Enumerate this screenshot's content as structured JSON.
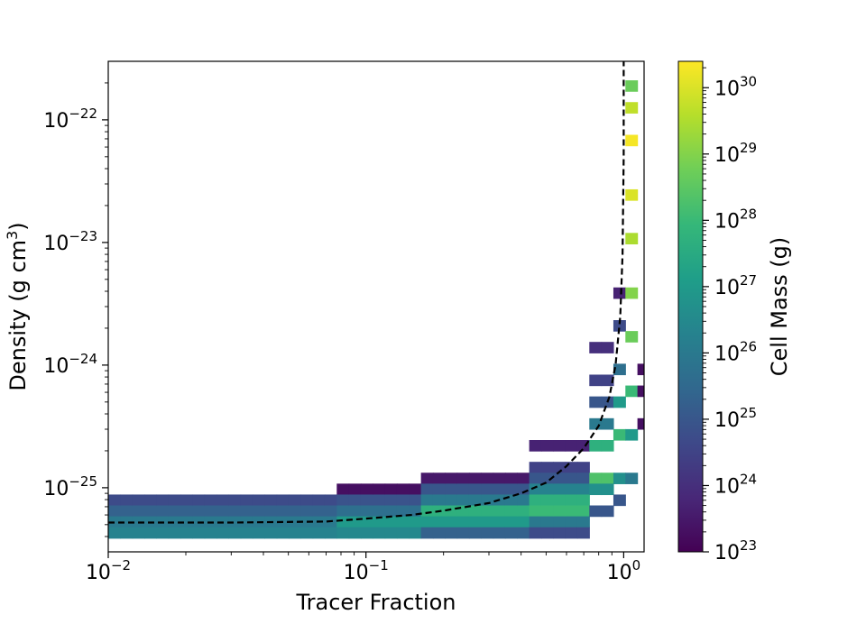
{
  "chart_data": {
    "type": "heatmap",
    "xlabel": "Tracer Fraction",
    "ylabel_parts": [
      "Density (g cm",
      "3",
      ")"
    ],
    "colorbar_label": "Cell Mass (g)",
    "x_scale": "log",
    "y_scale": "log",
    "xlim": [
      0.01,
      1.2
    ],
    "ylim": [
      3e-26,
      3e-22
    ],
    "x_ticks": [
      {
        "value": 0.01,
        "base": "10",
        "exp": "−2"
      },
      {
        "value": 0.1,
        "base": "10",
        "exp": "−1"
      },
      {
        "value": 1,
        "base": "10",
        "exp": "0"
      }
    ],
    "y_ticks": [
      {
        "value": 1e-25,
        "base": "10",
        "exp": "−25"
      },
      {
        "value": 1e-24,
        "base": "10",
        "exp": "−24"
      },
      {
        "value": 1e-23,
        "base": "10",
        "exp": "−23"
      },
      {
        "value": 1e-22,
        "base": "10",
        "exp": "−22"
      }
    ],
    "colorbar_ticks": [
      {
        "value": 1e+23,
        "base": "10",
        "exp": "23"
      },
      {
        "value": 1e+24,
        "base": "10",
        "exp": "24"
      },
      {
        "value": 1e+25,
        "base": "10",
        "exp": "25"
      },
      {
        "value": 1e+26,
        "base": "10",
        "exp": "26"
      },
      {
        "value": 1e+27,
        "base": "10",
        "exp": "27"
      },
      {
        "value": 1e+28,
        "base": "10",
        "exp": "28"
      },
      {
        "value": 1e+29,
        "base": "10",
        "exp": "29"
      },
      {
        "value": 1e+30,
        "base": "10",
        "exp": "30"
      }
    ],
    "colorbar_range": [
      1e+23,
      2.5e+30
    ],
    "colormap": "viridis",
    "colormap_stops": [
      "#440154",
      "#482878",
      "#3e4989",
      "#31688e",
      "#26828e",
      "#1f9e89",
      "#35b779",
      "#6ece58",
      "#b5de2b",
      "#fde725"
    ],
    "bins": {
      "x_log_range": [
        -2,
        0.1
      ],
      "y_log_range": [
        -25.5,
        -21.5
      ],
      "nx": 45,
      "ny": 45
    },
    "band_cells": [
      {
        "x_log_start": -2.0,
        "x_log_end": -1.1,
        "y_rows": [
          {
            "y_log": -25.08,
            "mass": 5e+24
          },
          {
            "y_log": -25.17,
            "mass": 2e+25
          },
          {
            "y_log": -25.26,
            "mass": 1e+26
          },
          {
            "y_log": -25.35,
            "mass": 2e+26
          }
        ]
      },
      {
        "x_log_start": -1.1,
        "x_log_end": -0.8,
        "y_rows": [
          {
            "y_log": -25.03,
            "mass": 2e+23
          },
          {
            "y_log": -25.12,
            "mass": 8e+24
          },
          {
            "y_log": -25.21,
            "mass": 5e+25
          },
          {
            "y_log": -25.3,
            "mass": 1e+27
          },
          {
            "y_log": -25.39,
            "mass": 3e+26
          }
        ]
      },
      {
        "x_log_start": -0.8,
        "x_log_end": -0.35,
        "y_rows": [
          {
            "y_log": -24.95,
            "mass": 3e+23
          },
          {
            "y_log": -25.04,
            "mass": 1e+25
          },
          {
            "y_log": -25.13,
            "mass": 1e+26
          },
          {
            "y_log": -25.22,
            "mass": 5e+27
          },
          {
            "y_log": -25.31,
            "mass": 1e+27
          },
          {
            "y_log": -25.4,
            "mass": 2e+25
          }
        ]
      },
      {
        "x_log_start": -0.35,
        "x_log_end": -0.12,
        "y_rows": [
          {
            "y_log": -24.7,
            "mass": 5e+23
          },
          {
            "y_log": -24.79,
            "mass": 3e+24
          },
          {
            "y_log": -24.88,
            "mass": 1e+25
          },
          {
            "y_log": -24.97,
            "mass": 2e+26
          },
          {
            "y_log": -25.06,
            "mass": 5e+27
          },
          {
            "y_log": -25.15,
            "mass": 1e+28
          },
          {
            "y_log": -25.24,
            "mass": 1e+26
          },
          {
            "y_log": -25.33,
            "mass": 5e+24
          }
        ]
      },
      {
        "x_log_start": -0.12,
        "x_log_end": -0.05,
        "y_rows": [
          {
            "y_log": -23.9,
            "mass": 1e+24
          },
          {
            "y_log": -24.1,
            "mass": 3e+24
          },
          {
            "y_log": -24.3,
            "mass": 1e+25
          },
          {
            "y_log": -24.5,
            "mass": 1e+26
          },
          {
            "y_log": -24.7,
            "mass": 5e+27
          },
          {
            "y_log": -24.9,
            "mass": 2e+28
          },
          {
            "y_log": -25.05,
            "mass": 5e+26
          },
          {
            "y_log": -25.2,
            "mass": 1e+25
          }
        ]
      },
      {
        "x_log_start": -0.05,
        "x_log_end": 0.0,
        "y_rows": [
          {
            "y_log": -23.45,
            "mass": 5e+23
          },
          {
            "y_log": -23.7,
            "mass": 5e+24
          },
          {
            "y_log": -24.0,
            "mass": 5e+25
          },
          {
            "y_log": -24.3,
            "mass": 1e+27
          },
          {
            "y_log": -24.6,
            "mass": 1e+28
          },
          {
            "y_log": -24.9,
            "mass": 5e+26
          },
          {
            "y_log": -25.1,
            "mass": 1e+25
          }
        ]
      },
      {
        "x_log_start": 0.0,
        "x_log_end": 0.04,
        "y_rows": [
          {
            "y_log": -21.7,
            "mass": 5e+28
          },
          {
            "y_log": -21.9,
            "mass": 5e+29
          },
          {
            "y_log": -22.2,
            "mass": 2e+30
          },
          {
            "y_log": -22.6,
            "mass": 1e+30
          },
          {
            "y_log": -23.0,
            "mass": 3e+29
          },
          {
            "y_log": -23.4,
            "mass": 1e+29
          },
          {
            "y_log": -23.8,
            "mass": 5e+28
          },
          {
            "y_log": -24.2,
            "mass": 1e+28
          },
          {
            "y_log": -24.6,
            "mass": 1e+27
          },
          {
            "y_log": -24.9,
            "mass": 1e+26
          }
        ]
      },
      {
        "x_log_start": 0.04,
        "x_log_end": 0.09,
        "y_rows": [
          {
            "y_log": -24.05,
            "mass": 2e+23
          },
          {
            "y_log": -24.25,
            "mass": 2e+23
          },
          {
            "y_log": -24.45,
            "mass": 2e+23
          }
        ]
      }
    ],
    "median_curve": {
      "x": [
        0.01,
        0.03,
        0.07,
        0.1,
        0.15,
        0.2,
        0.3,
        0.4,
        0.5,
        0.6,
        0.7,
        0.8,
        0.88,
        0.93,
        0.97,
        0.99,
        1.0,
        1.0
      ],
      "y": [
        5.2e-26,
        5.2e-26,
        5.3e-26,
        5.6e-26,
        6e-26,
        6.5e-26,
        7.5e-26,
        9e-26,
        1.1e-25,
        1.5e-25,
        2.1e-25,
        3.2e-25,
        5.5e-25,
        1e-24,
        2.5e-24,
        8e-24,
        5e-23,
        3e-22
      ]
    }
  }
}
